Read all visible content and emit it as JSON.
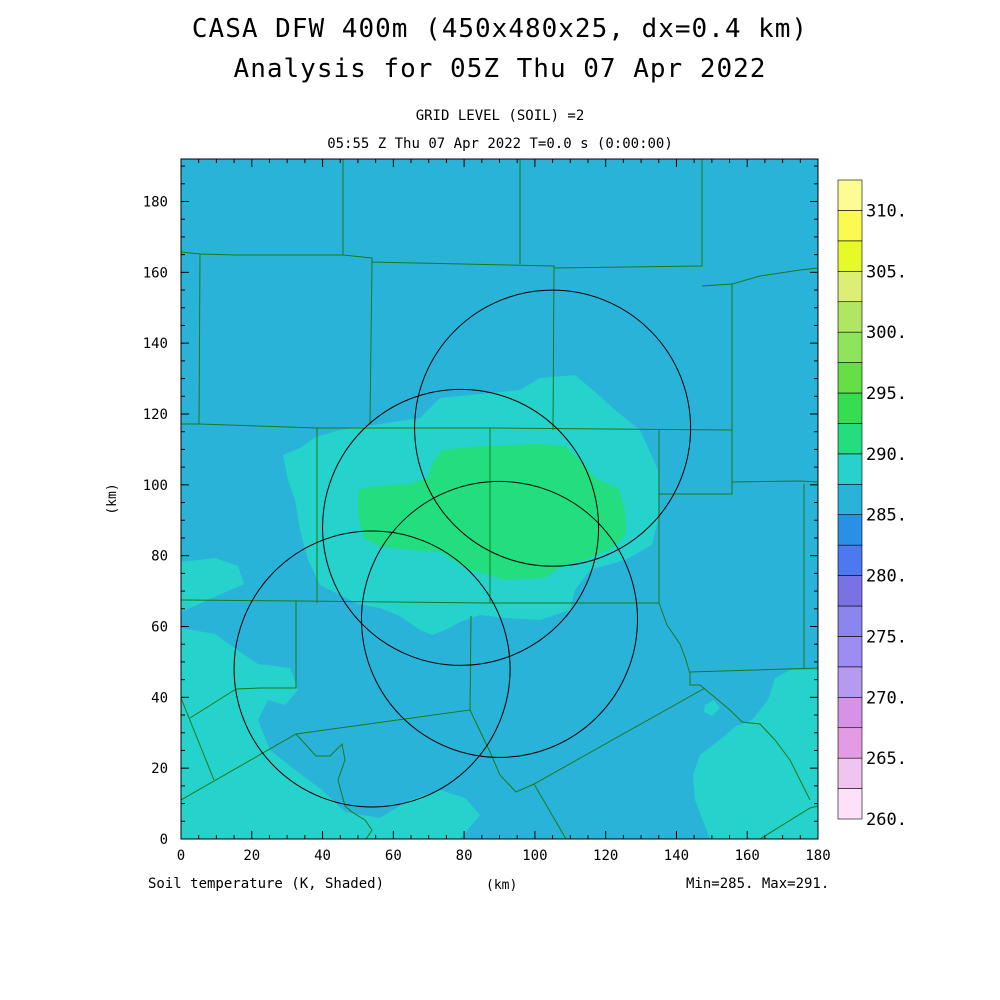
{
  "header": {
    "title_line1": "CASA DFW 400m (450x480x25, dx=0.4 km)",
    "title_line2": "Analysis for 05Z Thu 07 Apr 2022",
    "grid_level": "GRID LEVEL (SOIL) =2",
    "valid_time": "05:55 Z Thu 07 Apr 2022   T=0.0 s (0:00:00)"
  },
  "footer": {
    "variable": "Soil temperature (K, Shaded)",
    "xunit": "(km)",
    "minmax": "Min=285. Max=291."
  },
  "axes": {
    "ylabel": "(km)",
    "xticks": [
      "0",
      "20",
      "40",
      "60",
      "80",
      "100",
      "120",
      "140",
      "160",
      "180"
    ],
    "yticks": [
      "0",
      "20",
      "40",
      "60",
      "80",
      "100",
      "120",
      "140",
      "160",
      "180"
    ],
    "xlim": [
      0,
      180
    ],
    "ylim": [
      0,
      192
    ]
  },
  "colorbar": {
    "labels": [
      "260.",
      "265.",
      "270.",
      "275.",
      "280.",
      "285.",
      "290.",
      "295.",
      "300.",
      "305.",
      "310."
    ],
    "colors": [
      "#fde0fa",
      "#f0c4ee",
      "#e39ce3",
      "#d692e6",
      "#b59aef",
      "#9c8cf4",
      "#8a86ee",
      "#7a72e4",
      "#4c78f0",
      "#2a90e6",
      "#2ab3d8",
      "#26d2cc",
      "#22de7e",
      "#36dd50",
      "#66de46",
      "#8ee45a",
      "#b0e662",
      "#dcee74",
      "#e6fa2a",
      "#fafa50",
      "#fcfc92"
    ]
  },
  "colors": {
    "blue_285": "#2ab3d8",
    "cyan_288": "#26d2cc",
    "green_290": "#22de7e",
    "county_line": "#1a7a1a",
    "range_ring": "#000000"
  },
  "radar_rings": [
    {
      "name": "ring-northeast",
      "cx": 105,
      "cy": 116,
      "r": 39
    },
    {
      "name": "ring-north",
      "cx": 79,
      "cy": 88,
      "r": 39
    },
    {
      "name": "ring-southwest",
      "cx": 54,
      "cy": 48,
      "r": 39
    },
    {
      "name": "ring-south",
      "cx": 90,
      "cy": 62,
      "r": 39
    }
  ]
}
